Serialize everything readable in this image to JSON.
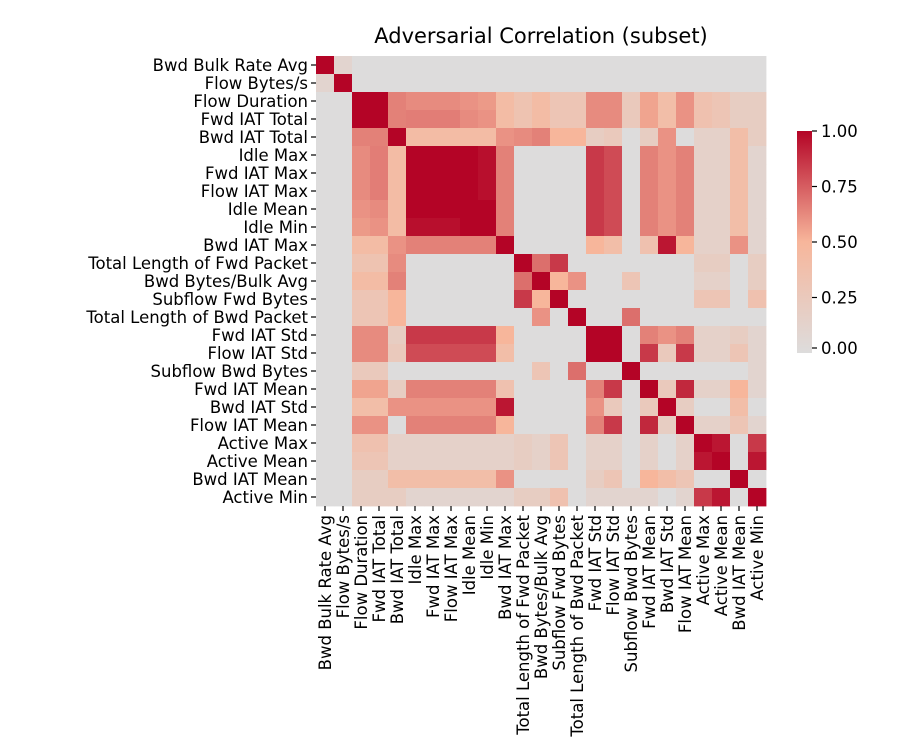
{
  "chart_data": {
    "type": "heatmap",
    "title": "Adversarial Correlation (subset)",
    "labels": [
      "Bwd Bulk Rate Avg",
      "Flow Bytes/s",
      "Flow Duration",
      "Fwd IAT Total",
      "Bwd IAT Total",
      "Idle Max",
      "Fwd IAT Max",
      "Flow IAT Max",
      "Idle Mean",
      "Idle Min",
      "Bwd IAT Max",
      "Total Length of Fwd Packet",
      "Bwd Bytes/Bulk Avg",
      "Subflow Fwd Bytes",
      "Total Length of Bwd Packet",
      "Fwd IAT Std",
      "Flow IAT Std",
      "Subflow Bwd Bytes",
      "Fwd IAT Mean",
      "Bwd IAT Std",
      "Flow IAT Mean",
      "Active Max",
      "Active Mean",
      "Bwd IAT Mean",
      "Active Min"
    ],
    "matrix": [
      [
        1.0,
        0.1,
        0.0,
        0.0,
        0.0,
        0.0,
        0.0,
        0.0,
        0.0,
        0.0,
        0.0,
        0.0,
        0.0,
        0.0,
        0.0,
        0.0,
        0.0,
        0.0,
        0.0,
        0.0,
        0.0,
        0.0,
        0.0,
        0.0,
        0.0
      ],
      [
        0.1,
        1.0,
        0.0,
        0.0,
        0.0,
        0.0,
        0.0,
        0.0,
        0.0,
        0.0,
        0.0,
        0.0,
        0.0,
        0.0,
        0.0,
        0.0,
        0.0,
        0.0,
        0.0,
        0.0,
        0.0,
        0.0,
        0.0,
        0.0,
        0.0
      ],
      [
        0.0,
        0.0,
        1.0,
        1.0,
        0.65,
        0.62,
        0.62,
        0.62,
        0.6,
        0.58,
        0.42,
        0.33,
        0.42,
        0.3,
        0.3,
        0.62,
        0.62,
        0.25,
        0.55,
        0.4,
        0.6,
        0.35,
        0.3,
        0.2,
        0.2
      ],
      [
        0.0,
        0.0,
        1.0,
        1.0,
        0.65,
        0.66,
        0.66,
        0.66,
        0.62,
        0.6,
        0.42,
        0.33,
        0.42,
        0.3,
        0.3,
        0.62,
        0.62,
        0.25,
        0.55,
        0.4,
        0.6,
        0.35,
        0.3,
        0.2,
        0.2
      ],
      [
        0.0,
        0.0,
        0.65,
        0.65,
        1.0,
        0.42,
        0.42,
        0.42,
        0.42,
        0.42,
        0.6,
        0.62,
        0.65,
        0.5,
        0.5,
        0.2,
        0.25,
        0.0,
        0.2,
        0.6,
        0.0,
        0.15,
        0.15,
        0.4,
        0.2
      ],
      [
        0.0,
        0.0,
        0.62,
        0.66,
        0.42,
        1.0,
        1.0,
        1.0,
        1.0,
        0.97,
        0.65,
        0.0,
        0.0,
        0.0,
        0.0,
        0.85,
        0.8,
        0.0,
        0.65,
        0.6,
        0.65,
        0.15,
        0.15,
        0.4,
        0.1
      ],
      [
        0.0,
        0.0,
        0.62,
        0.66,
        0.42,
        1.0,
        1.0,
        1.0,
        1.0,
        0.97,
        0.65,
        0.0,
        0.0,
        0.0,
        0.0,
        0.85,
        0.8,
        0.0,
        0.65,
        0.6,
        0.65,
        0.15,
        0.15,
        0.4,
        0.1
      ],
      [
        0.0,
        0.0,
        0.62,
        0.66,
        0.42,
        1.0,
        1.0,
        1.0,
        1.0,
        0.97,
        0.65,
        0.0,
        0.0,
        0.0,
        0.0,
        0.85,
        0.8,
        0.0,
        0.65,
        0.6,
        0.65,
        0.15,
        0.15,
        0.4,
        0.1
      ],
      [
        0.0,
        0.0,
        0.6,
        0.62,
        0.42,
        1.0,
        1.0,
        1.0,
        1.0,
        1.0,
        0.65,
        0.0,
        0.0,
        0.0,
        0.0,
        0.85,
        0.8,
        0.0,
        0.65,
        0.6,
        0.65,
        0.15,
        0.15,
        0.4,
        0.1
      ],
      [
        0.0,
        0.0,
        0.58,
        0.6,
        0.42,
        0.97,
        0.97,
        0.97,
        1.0,
        1.0,
        0.65,
        0.0,
        0.0,
        0.0,
        0.0,
        0.85,
        0.8,
        0.0,
        0.65,
        0.6,
        0.65,
        0.15,
        0.15,
        0.4,
        0.1
      ],
      [
        0.0,
        0.0,
        0.42,
        0.42,
        0.6,
        0.65,
        0.65,
        0.65,
        0.65,
        0.65,
        1.0,
        0.0,
        0.0,
        0.0,
        0.0,
        0.5,
        0.4,
        0.0,
        0.35,
        0.95,
        0.5,
        0.15,
        0.15,
        0.6,
        0.1
      ],
      [
        0.0,
        0.0,
        0.33,
        0.33,
        0.62,
        0.0,
        0.0,
        0.0,
        0.0,
        0.0,
        0.0,
        1.0,
        0.7,
        0.85,
        0.0,
        0.0,
        0.0,
        0.0,
        0.0,
        0.0,
        0.0,
        0.2,
        0.2,
        0.0,
        0.2
      ],
      [
        0.0,
        0.0,
        0.42,
        0.42,
        0.65,
        0.0,
        0.0,
        0.0,
        0.0,
        0.0,
        0.0,
        0.7,
        1.0,
        0.5,
        0.6,
        0.0,
        0.0,
        0.3,
        0.0,
        0.0,
        0.0,
        0.15,
        0.15,
        0.0,
        0.2
      ],
      [
        0.0,
        0.0,
        0.3,
        0.3,
        0.5,
        0.0,
        0.0,
        0.0,
        0.0,
        0.0,
        0.0,
        0.85,
        0.5,
        1.0,
        0.0,
        0.0,
        0.0,
        0.0,
        0.0,
        0.0,
        0.0,
        0.3,
        0.3,
        0.0,
        0.35
      ],
      [
        0.0,
        0.0,
        0.3,
        0.3,
        0.5,
        0.0,
        0.0,
        0.0,
        0.0,
        0.0,
        0.0,
        0.0,
        0.6,
        0.0,
        1.0,
        0.0,
        0.0,
        0.7,
        0.0,
        0.0,
        0.0,
        0.0,
        0.0,
        0.0,
        0.0
      ],
      [
        0.0,
        0.0,
        0.62,
        0.62,
        0.2,
        0.85,
        0.85,
        0.85,
        0.85,
        0.85,
        0.5,
        0.0,
        0.0,
        0.0,
        0.0,
        1.0,
        1.0,
        0.0,
        0.65,
        0.6,
        0.65,
        0.15,
        0.15,
        0.2,
        0.1
      ],
      [
        0.0,
        0.0,
        0.62,
        0.62,
        0.25,
        0.8,
        0.8,
        0.8,
        0.8,
        0.8,
        0.4,
        0.0,
        0.0,
        0.0,
        0.0,
        1.0,
        1.0,
        0.0,
        0.85,
        0.25,
        0.85,
        0.15,
        0.15,
        0.3,
        0.1
      ],
      [
        0.0,
        0.0,
        0.25,
        0.25,
        0.0,
        0.0,
        0.0,
        0.0,
        0.0,
        0.0,
        0.0,
        0.0,
        0.3,
        0.0,
        0.7,
        0.0,
        0.0,
        1.0,
        0.0,
        0.0,
        0.0,
        0.0,
        0.0,
        0.0,
        0.1
      ],
      [
        0.0,
        0.0,
        0.55,
        0.55,
        0.2,
        0.65,
        0.65,
        0.65,
        0.65,
        0.65,
        0.35,
        0.0,
        0.0,
        0.0,
        0.0,
        0.65,
        0.85,
        0.0,
        1.0,
        0.25,
        0.9,
        0.15,
        0.15,
        0.5,
        0.1
      ],
      [
        0.0,
        0.0,
        0.4,
        0.4,
        0.6,
        0.6,
        0.6,
        0.6,
        0.6,
        0.6,
        0.95,
        0.0,
        0.0,
        0.0,
        0.0,
        0.6,
        0.25,
        0.0,
        0.25,
        1.0,
        0.2,
        0.0,
        0.0,
        0.4,
        0.0
      ],
      [
        0.0,
        0.0,
        0.6,
        0.6,
        0.0,
        0.65,
        0.65,
        0.65,
        0.65,
        0.65,
        0.5,
        0.0,
        0.0,
        0.0,
        0.0,
        0.65,
        0.85,
        0.0,
        0.9,
        0.2,
        1.0,
        0.15,
        0.15,
        0.3,
        0.1
      ],
      [
        0.0,
        0.0,
        0.35,
        0.35,
        0.15,
        0.15,
        0.15,
        0.15,
        0.15,
        0.15,
        0.15,
        0.2,
        0.15,
        0.3,
        0.0,
        0.15,
        0.15,
        0.0,
        0.15,
        0.0,
        0.15,
        1.0,
        0.95,
        0.0,
        0.85
      ],
      [
        0.0,
        0.0,
        0.3,
        0.3,
        0.15,
        0.15,
        0.15,
        0.15,
        0.15,
        0.15,
        0.15,
        0.2,
        0.15,
        0.3,
        0.0,
        0.15,
        0.15,
        0.0,
        0.15,
        0.0,
        0.15,
        0.95,
        1.0,
        0.0,
        0.95
      ],
      [
        0.0,
        0.0,
        0.2,
        0.2,
        0.4,
        0.4,
        0.4,
        0.4,
        0.4,
        0.4,
        0.6,
        0.0,
        0.0,
        0.0,
        0.0,
        0.2,
        0.3,
        0.0,
        0.5,
        0.4,
        0.3,
        0.0,
        0.0,
        1.0,
        0.0
      ],
      [
        0.0,
        0.0,
        0.2,
        0.2,
        0.2,
        0.1,
        0.1,
        0.1,
        0.1,
        0.1,
        0.1,
        0.2,
        0.2,
        0.35,
        0.0,
        0.1,
        0.1,
        0.1,
        0.1,
        0.0,
        0.1,
        0.85,
        0.95,
        0.0,
        1.0
      ]
    ],
    "value_range": [
      0,
      1
    ],
    "colormap": "coolwarm",
    "colorbar": {
      "ticks": [
        0.0,
        0.25,
        0.5,
        0.75,
        1.0
      ],
      "tick_labels": [
        "0.00",
        "0.25",
        "0.50",
        "0.75",
        "1.00"
      ]
    },
    "colors": {
      "low": "#dddcdc",
      "mid": "#f7b69b",
      "high": "#b40426"
    },
    "xlabel": "",
    "ylabel": ""
  }
}
